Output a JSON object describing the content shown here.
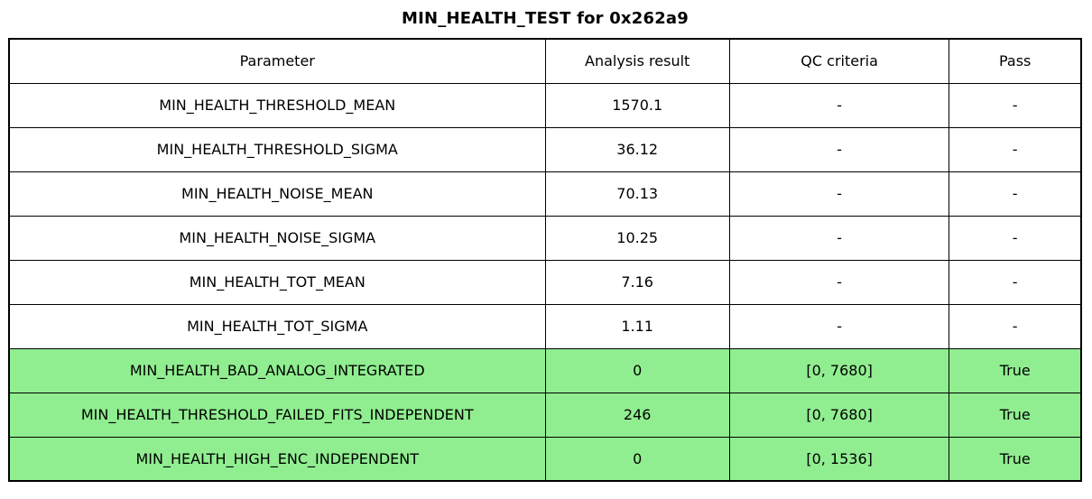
{
  "title": "MIN_HEALTH_TEST for 0x262a9",
  "colors": {
    "background": "#FFFFFF",
    "border": "#000000",
    "text": "#000000",
    "pass_green": "#90EE90"
  },
  "chart_data": {
    "type": "table",
    "title": "MIN_HEALTH_TEST for 0x262a9",
    "columns": [
      "Parameter",
      "Analysis result",
      "QC criteria",
      "Pass"
    ],
    "rows": [
      [
        "MIN_HEALTH_THRESHOLD_MEAN",
        "1570.1",
        "-",
        "-"
      ],
      [
        "MIN_HEALTH_THRESHOLD_SIGMA",
        "36.12",
        "-",
        "-"
      ],
      [
        "MIN_HEALTH_NOISE_MEAN",
        "70.13",
        "-",
        "-"
      ],
      [
        "MIN_HEALTH_NOISE_SIGMA",
        "10.25",
        "-",
        "-"
      ],
      [
        "MIN_HEALTH_TOT_MEAN",
        "7.16",
        "-",
        "-"
      ],
      [
        "MIN_HEALTH_TOT_SIGMA",
        "1.11",
        "-",
        "-"
      ],
      [
        "MIN_HEALTH_BAD_ANALOG_INTEGRATED",
        "0",
        "[0, 7680]",
        "True"
      ],
      [
        "MIN_HEALTH_THRESHOLD_FAILED_FITS_INDEPENDENT",
        "246",
        "[0, 7680]",
        "True"
      ],
      [
        "MIN_HEALTH_HIGH_ENC_INDEPENDENT",
        "0",
        "[0, 1536]",
        "True"
      ]
    ],
    "highlighted_rows": [
      6,
      7,
      8
    ],
    "legend_position": "none",
    "grid": "full-cell-borders"
  }
}
